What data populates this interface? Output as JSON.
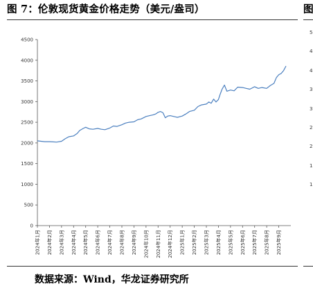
{
  "figure_title": "图 7：伦敦现货黄金价格走势（美元/盎司）",
  "right_title_fragment": "图",
  "source_note": "数据来源：Wind，华龙证券研究所",
  "right_axis_fragments": [
    "5",
    "4",
    "4",
    "3",
    "3",
    "2",
    "2",
    "1",
    "1"
  ],
  "chart_data": {
    "type": "line",
    "title": "",
    "xlabel": "",
    "ylabel": "",
    "ylim": [
      0,
      4500
    ],
    "yticks": [
      0,
      500,
      1000,
      1500,
      2000,
      2500,
      3000,
      3500,
      4000,
      4500
    ],
    "xlim": [
      0,
      21
    ],
    "xtick_labels": [
      "2024年1月",
      "2024年2月",
      "2024年3月",
      "2024年4月",
      "2024年5月",
      "2024年6月",
      "2024年7月",
      "2024年8月",
      "2024年9月",
      "2024年10月",
      "2024年11月",
      "2024年12月",
      "2025年1月",
      "2025年2月",
      "2025年3月",
      "2025年4月",
      "2025年5月",
      "2025年6月",
      "2025年7月",
      "2025年8月",
      "2025年9月"
    ],
    "line_color": "#4a7fbf",
    "grid": false,
    "series": [
      {
        "name": "",
        "x": [
          0,
          0.3,
          0.6,
          1,
          1.3,
          1.6,
          2,
          2.3,
          2.6,
          3,
          3.3,
          3.5,
          3.8,
          4,
          4.3,
          4.6,
          5,
          5.3,
          5.6,
          6,
          6.3,
          6.6,
          7,
          7.3,
          7.6,
          8,
          8.3,
          8.6,
          9,
          9.3,
          9.6,
          9.8,
          10,
          10.2,
          10.4,
          10.6,
          10.8,
          11,
          11.3,
          11.6,
          12,
          12.3,
          12.6,
          13,
          13.3,
          13.6,
          14,
          14.2,
          14.4,
          14.6,
          14.8,
          15,
          15.15,
          15.3,
          15.5,
          15.7,
          16,
          16.3,
          16.6,
          17,
          17.3,
          17.6,
          18,
          18.3,
          18.6,
          19,
          19.3,
          19.6,
          19.8,
          20,
          20.2,
          20.4,
          20.6
        ],
        "y": [
          2050,
          2040,
          2030,
          2030,
          2025,
          2020,
          2040,
          2100,
          2150,
          2170,
          2230,
          2300,
          2350,
          2380,
          2340,
          2330,
          2350,
          2330,
          2320,
          2360,
          2410,
          2400,
          2440,
          2480,
          2500,
          2510,
          2560,
          2580,
          2640,
          2660,
          2680,
          2700,
          2740,
          2760,
          2730,
          2610,
          2650,
          2660,
          2640,
          2620,
          2650,
          2700,
          2760,
          2790,
          2880,
          2920,
          2940,
          2990,
          2960,
          3060,
          2990,
          3050,
          3180,
          3300,
          3400,
          3250,
          3280,
          3260,
          3350,
          3340,
          3320,
          3300,
          3360,
          3320,
          3340,
          3320,
          3390,
          3440,
          3580,
          3650,
          3680,
          3750,
          3860
        ]
      }
    ]
  }
}
